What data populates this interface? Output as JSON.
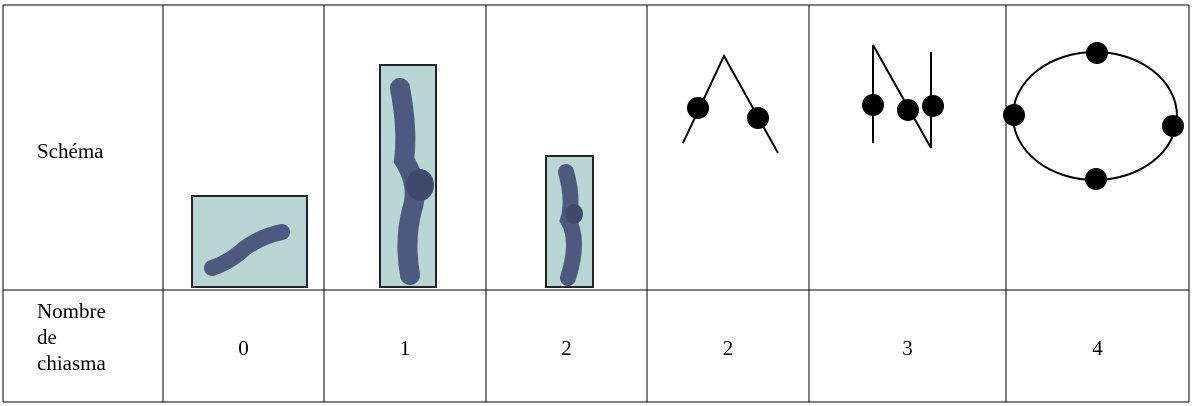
{
  "table": {
    "rows": [
      {
        "label": "Schéma"
      },
      {
        "label": "Nombre de chiasma",
        "cells": [
          0,
          1,
          2,
          2,
          3,
          4
        ]
      }
    ]
  }
}
